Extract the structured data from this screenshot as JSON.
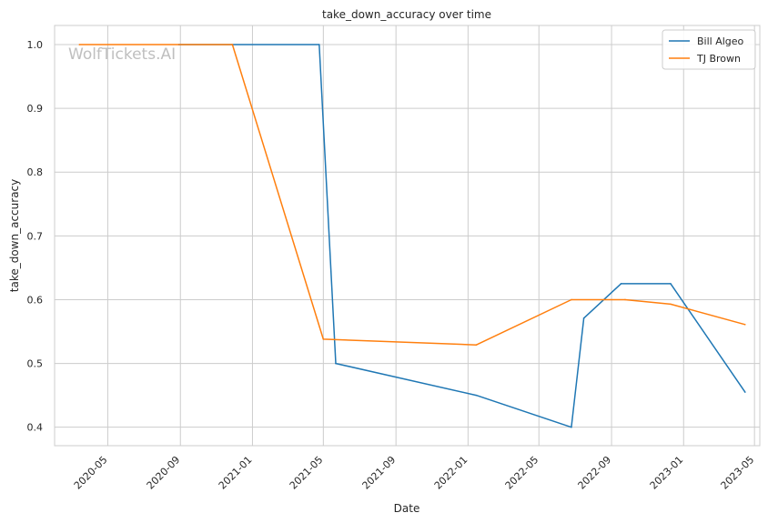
{
  "chart_data": {
    "type": "line",
    "title": "take_down_accuracy over time",
    "xlabel": "Date",
    "ylabel": "take_down_accuracy",
    "watermark": "WolfTickets.AI",
    "x_ticks": [
      "2020-05",
      "2020-09",
      "2021-01",
      "2021-05",
      "2021-09",
      "2022-01",
      "2022-05",
      "2022-09",
      "2023-01",
      "2023-05"
    ],
    "y_ticks": [
      "0.4",
      "0.5",
      "0.6",
      "0.7",
      "0.8",
      "0.9",
      "1.0"
    ],
    "xlim": [
      "2020-02-01",
      "2023-05-10"
    ],
    "ylim": [
      0.371,
      1.03
    ],
    "grid": true,
    "legend_position": "top-right",
    "series": [
      {
        "name": "Bill Algeo",
        "color": "#1f77b4",
        "points": [
          {
            "x": "2020-08-29",
            "y": 1.0
          },
          {
            "x": "2021-04-24",
            "y": 1.0
          },
          {
            "x": "2021-05-22",
            "y": 0.5
          },
          {
            "x": "2022-01-15",
            "y": 0.45
          },
          {
            "x": "2022-06-25",
            "y": 0.4
          },
          {
            "x": "2022-07-16",
            "y": 0.571
          },
          {
            "x": "2022-09-17",
            "y": 0.625
          },
          {
            "x": "2022-12-10",
            "y": 0.625
          },
          {
            "x": "2023-04-15",
            "y": 0.455
          }
        ]
      },
      {
        "name": "TJ Brown",
        "color": "#ff7f0e",
        "points": [
          {
            "x": "2020-03-14",
            "y": 1.0
          },
          {
            "x": "2020-11-28",
            "y": 1.0
          },
          {
            "x": "2021-05-01",
            "y": 0.538
          },
          {
            "x": "2022-01-15",
            "y": 0.529
          },
          {
            "x": "2022-06-25",
            "y": 0.6
          },
          {
            "x": "2022-09-24",
            "y": 0.6
          },
          {
            "x": "2022-12-10",
            "y": 0.593
          },
          {
            "x": "2023-04-15",
            "y": 0.561
          }
        ]
      }
    ]
  }
}
